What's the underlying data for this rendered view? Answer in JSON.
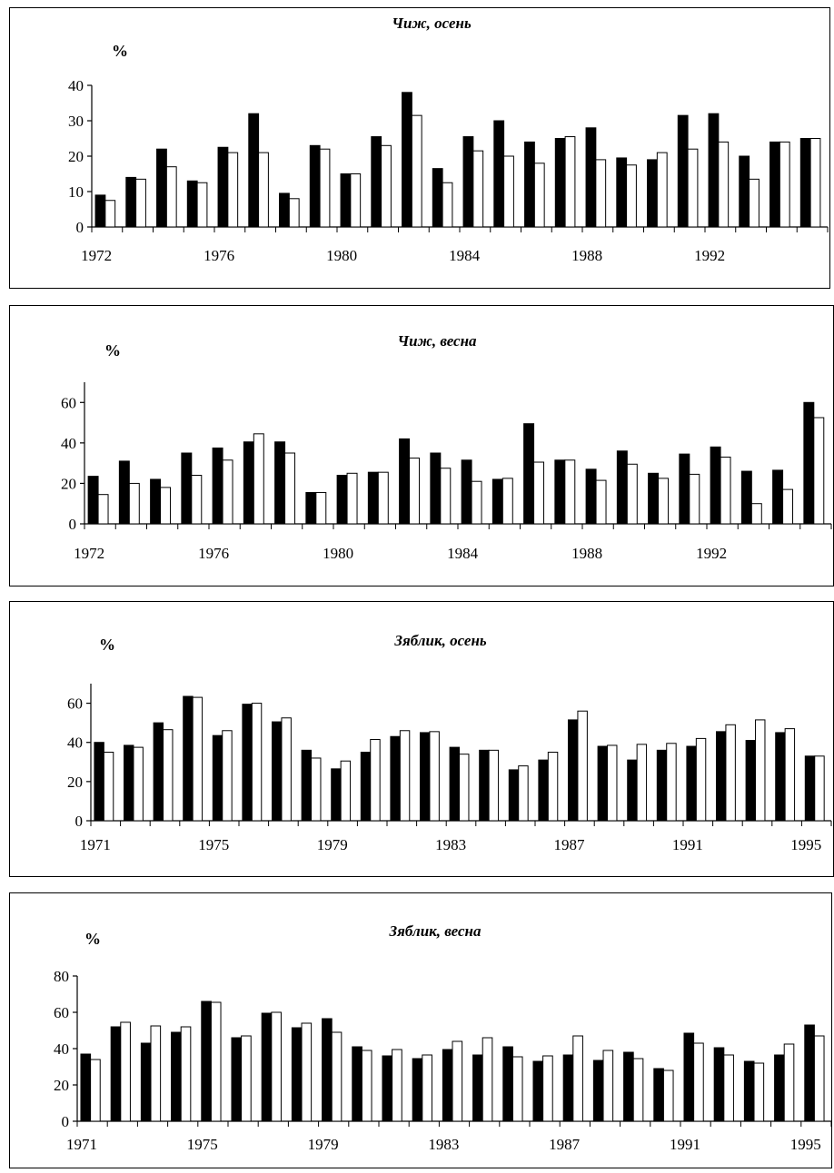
{
  "chart_data": [
    {
      "type": "bar",
      "title": "Чиж, осень",
      "ylabel": "%",
      "x": [
        1972,
        1973,
        1974,
        1975,
        1976,
        1977,
        1978,
        1979,
        1980,
        1981,
        1982,
        1983,
        1984,
        1985,
        1986,
        1987,
        1988,
        1989,
        1990,
        1991,
        1992,
        1993,
        1994,
        1995
      ],
      "x_tick_labels": [
        "1972",
        "1976",
        "1980",
        "1984",
        "1988",
        "1992"
      ],
      "ylim": [
        0,
        40
      ],
      "y_ticks": [
        0,
        10,
        20,
        30,
        40
      ],
      "series": [
        {
          "color": "#000000",
          "values": [
            9,
            14,
            22,
            13,
            22.5,
            32,
            9.5,
            23,
            15,
            25.5,
            38,
            16.5,
            25.5,
            30,
            24,
            25,
            28,
            19.5,
            19,
            31.5,
            32,
            20,
            24,
            25
          ]
        },
        {
          "color": "#ffffff",
          "values": [
            7.5,
            13.5,
            17,
            12.5,
            21,
            21,
            8,
            22,
            15,
            23,
            31.5,
            12.5,
            21.5,
            20,
            18,
            25.5,
            19,
            17.5,
            21,
            22,
            24,
            13.5,
            24,
            25
          ]
        }
      ]
    },
    {
      "type": "bar",
      "title": "Чиж, весна",
      "ylabel": "%",
      "x": [
        1972,
        1973,
        1974,
        1975,
        1976,
        1977,
        1978,
        1979,
        1980,
        1981,
        1982,
        1983,
        1984,
        1985,
        1986,
        1987,
        1988,
        1989,
        1990,
        1991,
        1992,
        1993,
        1994,
        1995
      ],
      "x_tick_labels": [
        "1972",
        "1976",
        "1980",
        "1984",
        "1988",
        "1992"
      ],
      "ylim": [
        0,
        70
      ],
      "y_ticks": [
        0,
        20,
        40,
        60
      ],
      "series": [
        {
          "color": "#000000",
          "values": [
            23.5,
            31,
            22,
            35,
            37.5,
            40.5,
            40.5,
            15.5,
            24,
            25.5,
            42,
            35,
            31.5,
            22,
            49.5,
            31.5,
            27,
            36,
            25,
            34.5,
            38,
            26,
            26.5,
            60
          ]
        },
        {
          "color": "#ffffff",
          "values": [
            14.5,
            20,
            18,
            24,
            31.5,
            44.5,
            35,
            15.5,
            25,
            25.5,
            32.5,
            27.5,
            21,
            22.5,
            30.5,
            31.5,
            21.5,
            29.5,
            22.5,
            24.5,
            33,
            10,
            17,
            52.5
          ]
        }
      ]
    },
    {
      "type": "bar",
      "title": "Зяблик, осень",
      "ylabel": "%",
      "x": [
        1971,
        1972,
        1973,
        1974,
        1975,
        1976,
        1977,
        1978,
        1979,
        1980,
        1981,
        1982,
        1983,
        1984,
        1985,
        1986,
        1987,
        1988,
        1989,
        1990,
        1991,
        1992,
        1993,
        1994,
        1995
      ],
      "x_tick_labels": [
        "1971",
        "1975",
        "1979",
        "1983",
        "1987",
        "1991",
        "1995"
      ],
      "ylim": [
        0,
        70
      ],
      "y_ticks": [
        0,
        20,
        40,
        60
      ],
      "series": [
        {
          "color": "#000000",
          "values": [
            40,
            38.5,
            50,
            63.5,
            43.5,
            59.5,
            50.5,
            36,
            26.5,
            35,
            43,
            45,
            37.5,
            36,
            26,
            31,
            51.5,
            38,
            31,
            36,
            38,
            45.5,
            41,
            45,
            33
          ]
        },
        {
          "color": "#ffffff",
          "values": [
            35,
            37.5,
            46.5,
            63,
            46,
            60,
            52.5,
            32,
            30.5,
            41.5,
            46,
            45.5,
            34,
            36,
            28,
            35,
            56,
            38.5,
            39,
            39.5,
            42,
            49,
            51.5,
            47,
            33
          ]
        }
      ]
    },
    {
      "type": "bar",
      "title": "Зяблик, весна",
      "ylabel": "%",
      "x": [
        1971,
        1972,
        1973,
        1974,
        1975,
        1976,
        1977,
        1978,
        1979,
        1980,
        1981,
        1982,
        1983,
        1984,
        1985,
        1986,
        1987,
        1988,
        1989,
        1990,
        1991,
        1992,
        1993,
        1994,
        1995
      ],
      "x_tick_labels": [
        "1971",
        "1975",
        "1979",
        "1983",
        "1987",
        "1991",
        "1995"
      ],
      "ylim": [
        0,
        80
      ],
      "y_ticks": [
        0,
        20,
        40,
        60,
        80
      ],
      "series": [
        {
          "color": "#000000",
          "values": [
            37,
            52,
            43,
            49,
            66,
            46,
            59.5,
            51.5,
            56.5,
            41,
            36,
            34.5,
            39.5,
            36.5,
            41,
            33,
            36.5,
            33.5,
            38,
            29,
            48.5,
            40.5,
            33,
            36.5,
            53
          ]
        },
        {
          "color": "#ffffff",
          "values": [
            34,
            54.5,
            52.5,
            52,
            65.5,
            47,
            60,
            54,
            49,
            39,
            39.5,
            36.5,
            44,
            46,
            35.5,
            36,
            47,
            39,
            34.5,
            28,
            43,
            36.5,
            32,
            42.5,
            47
          ]
        }
      ]
    }
  ]
}
